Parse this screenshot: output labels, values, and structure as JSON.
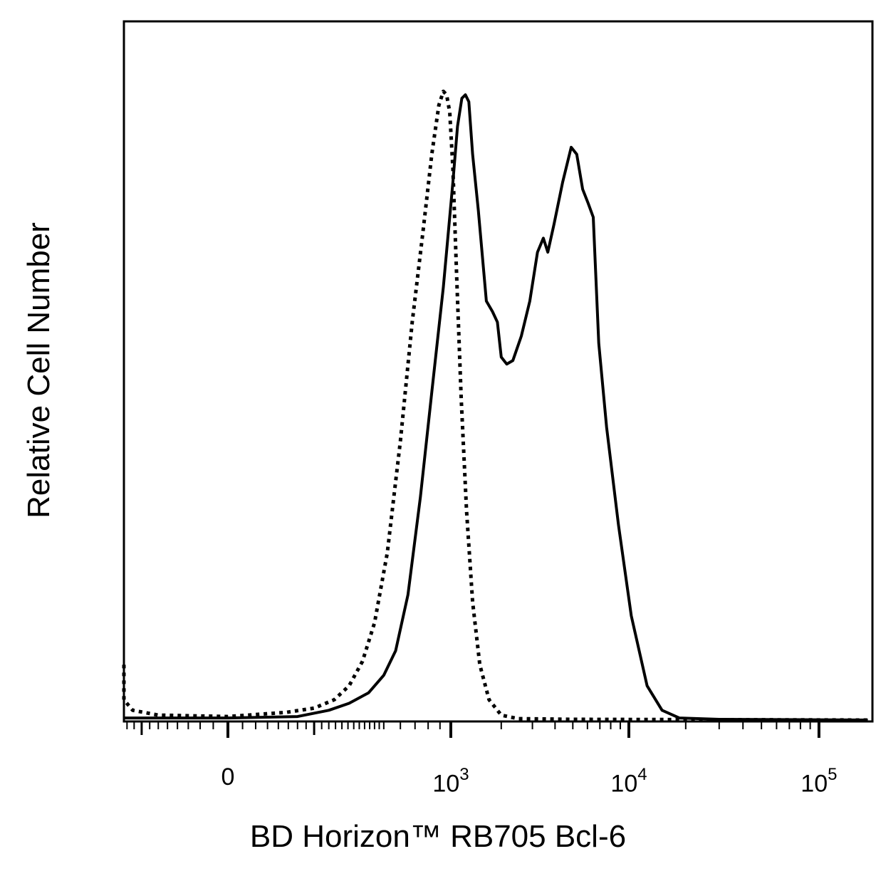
{
  "chart_data": {
    "type": "line",
    "title": "",
    "xlabel": "BD Horizon™ RB705 Bcl-6",
    "ylabel": "Relative Cell Number",
    "x_scale": "biexponential",
    "xlim": [
      -300,
      180000
    ],
    "ylim": [
      0,
      100
    ],
    "grid": false,
    "x_ticks": [
      {
        "value": 0,
        "base": "0",
        "exp": ""
      },
      {
        "value": 1000,
        "base": "10",
        "exp": "3"
      },
      {
        "value": 10000,
        "base": "10",
        "exp": "4"
      },
      {
        "value": 100000,
        "base": "10",
        "exp": "5"
      }
    ],
    "series": [
      {
        "style": "dotted",
        "points": [
          [
            -300,
            8
          ],
          [
            -280,
            3
          ],
          [
            -230,
            1.5
          ],
          [
            -150,
            0.8
          ],
          [
            0,
            0.6
          ],
          [
            120,
            1.2
          ],
          [
            200,
            1.8
          ],
          [
            270,
            3
          ],
          [
            330,
            5
          ],
          [
            390,
            8.5
          ],
          [
            450,
            14
          ],
          [
            520,
            24
          ],
          [
            600,
            40
          ],
          [
            680,
            57
          ],
          [
            760,
            70
          ],
          [
            830,
            81
          ],
          [
            890,
            88
          ],
          [
            930,
            90
          ],
          [
            960,
            89.5
          ],
          [
            990,
            87
          ],
          [
            1030,
            79
          ],
          [
            1090,
            63
          ],
          [
            1160,
            46
          ],
          [
            1250,
            30
          ],
          [
            1360,
            17
          ],
          [
            1500,
            8
          ],
          [
            1700,
            3
          ],
          [
            2000,
            0.8
          ],
          [
            2500,
            0.3
          ],
          [
            5000,
            0.2
          ],
          [
            180000,
            0.1
          ]
        ]
      },
      {
        "style": "solid",
        "points": [
          [
            -300,
            0.4
          ],
          [
            0,
            0.4
          ],
          [
            150,
            0.6
          ],
          [
            250,
            1.5
          ],
          [
            330,
            2.5
          ],
          [
            420,
            4
          ],
          [
            500,
            6.5
          ],
          [
            570,
            10
          ],
          [
            650,
            18
          ],
          [
            740,
            32
          ],
          [
            830,
            47
          ],
          [
            930,
            62
          ],
          [
            1030,
            77
          ],
          [
            1100,
            85
          ],
          [
            1170,
            89
          ],
          [
            1230,
            89.5
          ],
          [
            1290,
            88.5
          ],
          [
            1360,
            81
          ],
          [
            1470,
            73
          ],
          [
            1640,
            60
          ],
          [
            1780,
            58.5
          ],
          [
            1900,
            57
          ],
          [
            2000,
            52
          ],
          [
            2150,
            51
          ],
          [
            2330,
            51.5
          ],
          [
            2600,
            55
          ],
          [
            2900,
            60
          ],
          [
            3200,
            67
          ],
          [
            3450,
            69
          ],
          [
            3650,
            67
          ],
          [
            3950,
            71
          ],
          [
            4400,
            77
          ],
          [
            4900,
            82
          ],
          [
            5250,
            81
          ],
          [
            5650,
            76
          ],
          [
            6050,
            74
          ],
          [
            6450,
            72
          ],
          [
            6900,
            54
          ],
          [
            7600,
            42
          ],
          [
            8800,
            28
          ],
          [
            10300,
            15
          ],
          [
            12500,
            5
          ],
          [
            15000,
            1.5
          ],
          [
            18500,
            0.4
          ],
          [
            30000,
            0.2
          ],
          [
            180000,
            0.1
          ]
        ]
      }
    ]
  }
}
